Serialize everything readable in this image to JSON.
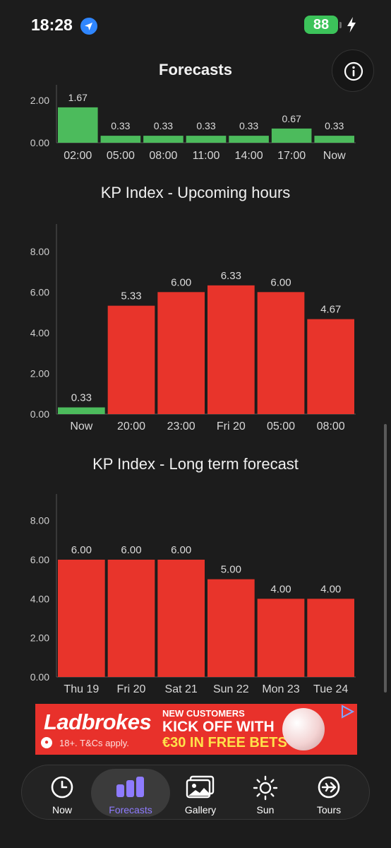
{
  "status_bar": {
    "time": "18:28",
    "battery": "88"
  },
  "header": {
    "title": "Forecasts"
  },
  "chart_data": [
    {
      "type": "bar",
      "title": "",
      "categories": [
        "02:00",
        "05:00",
        "08:00",
        "11:00",
        "14:00",
        "17:00",
        "Now"
      ],
      "values": [
        1.67,
        0.33,
        0.33,
        0.33,
        0.33,
        0.67,
        0.33
      ],
      "value_labels": [
        "1.67",
        "0.33",
        "0.33",
        "0.33",
        "0.33",
        "0.67",
        "0.33"
      ],
      "y_ticks": [
        "0.00",
        "2.00"
      ],
      "ylim": [
        0,
        2
      ],
      "bar_colors": [
        "#4cbb5c",
        "#4cbb5c",
        "#4cbb5c",
        "#4cbb5c",
        "#4cbb5c",
        "#4cbb5c",
        "#4cbb5c"
      ],
      "grid": false
    },
    {
      "type": "bar",
      "title": "KP Index - Upcoming hours",
      "categories": [
        "Now",
        "20:00",
        "23:00",
        "Fri 20",
        "05:00",
        "08:00"
      ],
      "values": [
        0.33,
        5.33,
        6.0,
        6.33,
        6.0,
        4.67
      ],
      "value_labels": [
        "0.33",
        "5.33",
        "6.00",
        "6.33",
        "6.00",
        "4.67"
      ],
      "y_ticks": [
        "0.00",
        "2.00",
        "4.00",
        "6.00",
        "8.00"
      ],
      "ylim": [
        0,
        9
      ],
      "bar_colors": [
        "#4cbb5c",
        "#e8342b",
        "#e8342b",
        "#e8342b",
        "#e8342b",
        "#e8342b"
      ],
      "grid": false
    },
    {
      "type": "bar",
      "title": "KP Index - Long term forecast",
      "categories": [
        "Thu 19",
        "Fri 20",
        "Sat 21",
        "Sun 22",
        "Mon 23",
        "Tue 24"
      ],
      "values": [
        6.0,
        6.0,
        6.0,
        5.0,
        4.0,
        4.0
      ],
      "value_labels": [
        "6.00",
        "6.00",
        "6.00",
        "5.00",
        "4.00",
        "4.00"
      ],
      "y_ticks": [
        "0.00",
        "2.00",
        "4.00",
        "6.00",
        "8.00"
      ],
      "ylim": [
        0,
        9
      ],
      "bar_colors": [
        "#e8342b",
        "#e8342b",
        "#e8342b",
        "#e8342b",
        "#e8342b",
        "#e8342b"
      ],
      "grid": false
    }
  ],
  "ad": {
    "brand": "Ladbrokes",
    "terms": "18+. T&Cs apply.",
    "line1": "NEW CUSTOMERS",
    "line2": "KICK OFF WITH",
    "line3": "€30 IN FREE BETS"
  },
  "tabs": [
    {
      "label": "Now",
      "icon": "clock-icon"
    },
    {
      "label": "Forecasts",
      "icon": "bar-chart-icon",
      "active": true
    },
    {
      "label": "Gallery",
      "icon": "gallery-icon"
    },
    {
      "label": "Sun",
      "icon": "sun-icon"
    },
    {
      "label": "Tours",
      "icon": "airplane-icon"
    }
  ]
}
